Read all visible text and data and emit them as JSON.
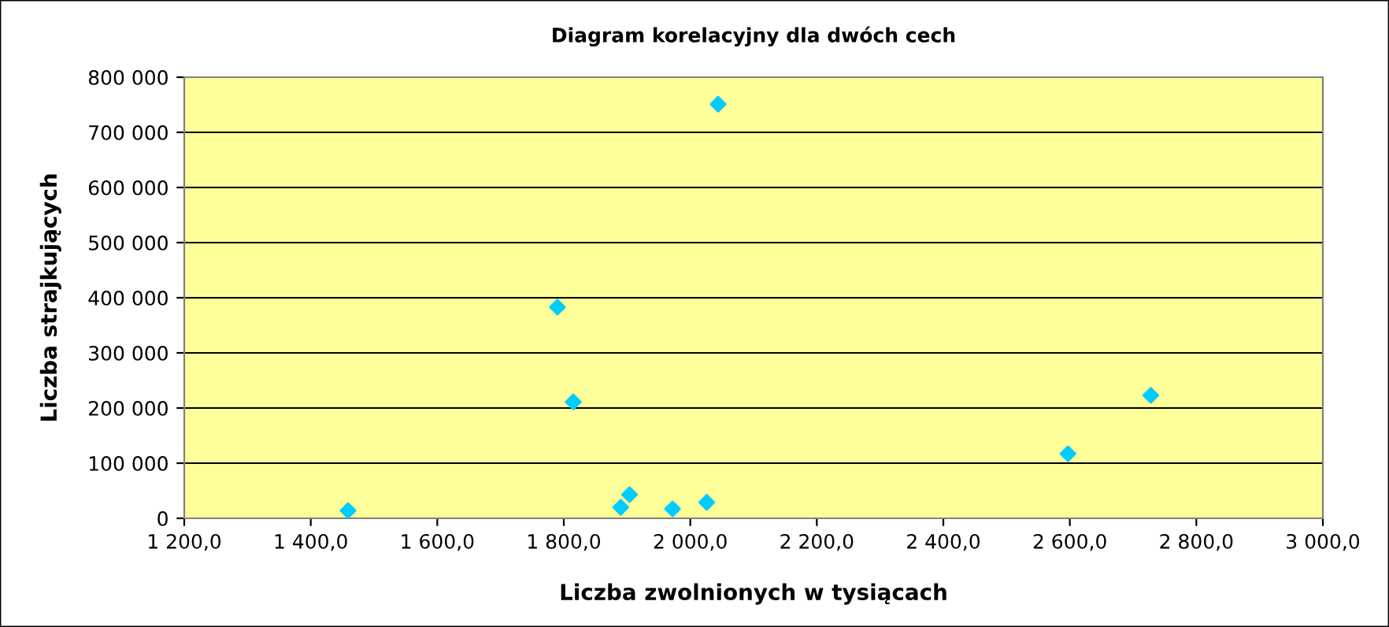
{
  "chart_data": {
    "type": "scatter",
    "title": "Diagram korelacyjny dla dwóch cech",
    "xlabel": "Liczba zwolnionych w tysiącach",
    "ylabel": "Liczba strajkujących",
    "x": [
      1459,
      1790,
      1815,
      1890,
      1904,
      1972,
      2026,
      2044,
      2597,
      2728
    ],
    "series": [
      {
        "color": "#00ccff",
        "values": [
          14000,
          383000,
          211000,
          20000,
          43000,
          17000,
          29000,
          751000,
          117000,
          223000
        ]
      }
    ],
    "xlim": [
      1200,
      3000
    ],
    "ylim": [
      0,
      800000
    ],
    "xticks": [
      {
        "value": 1200,
        "label": "1 200,0"
      },
      {
        "value": 1400,
        "label": "1 400,0"
      },
      {
        "value": 1600,
        "label": "1 600,0"
      },
      {
        "value": 1800,
        "label": "1 800,0"
      },
      {
        "value": 2000,
        "label": "2 000,0"
      },
      {
        "value": 2200,
        "label": "2 200,0"
      },
      {
        "value": 2400,
        "label": "2 400,0"
      },
      {
        "value": 2600,
        "label": "2 600,0"
      },
      {
        "value": 2800,
        "label": "2 800,0"
      },
      {
        "value": 3000,
        "label": "3 000,0"
      }
    ],
    "yticks": [
      0,
      {
        "value": 100000,
        "label": "100 000"
      },
      {
        "value": 200000,
        "label": "200 000"
      },
      {
        "value": 300000,
        "label": "300 000"
      },
      {
        "value": 400000,
        "label": "400 000"
      },
      {
        "value": 500000,
        "label": "500 000"
      },
      {
        "value": 600000,
        "label": "600 000"
      },
      {
        "value": 700000,
        "label": "700 000"
      },
      {
        "value": 800000,
        "label": "800 000"
      }
    ],
    "grid": "y",
    "marker": "diamond",
    "legend": false
  }
}
